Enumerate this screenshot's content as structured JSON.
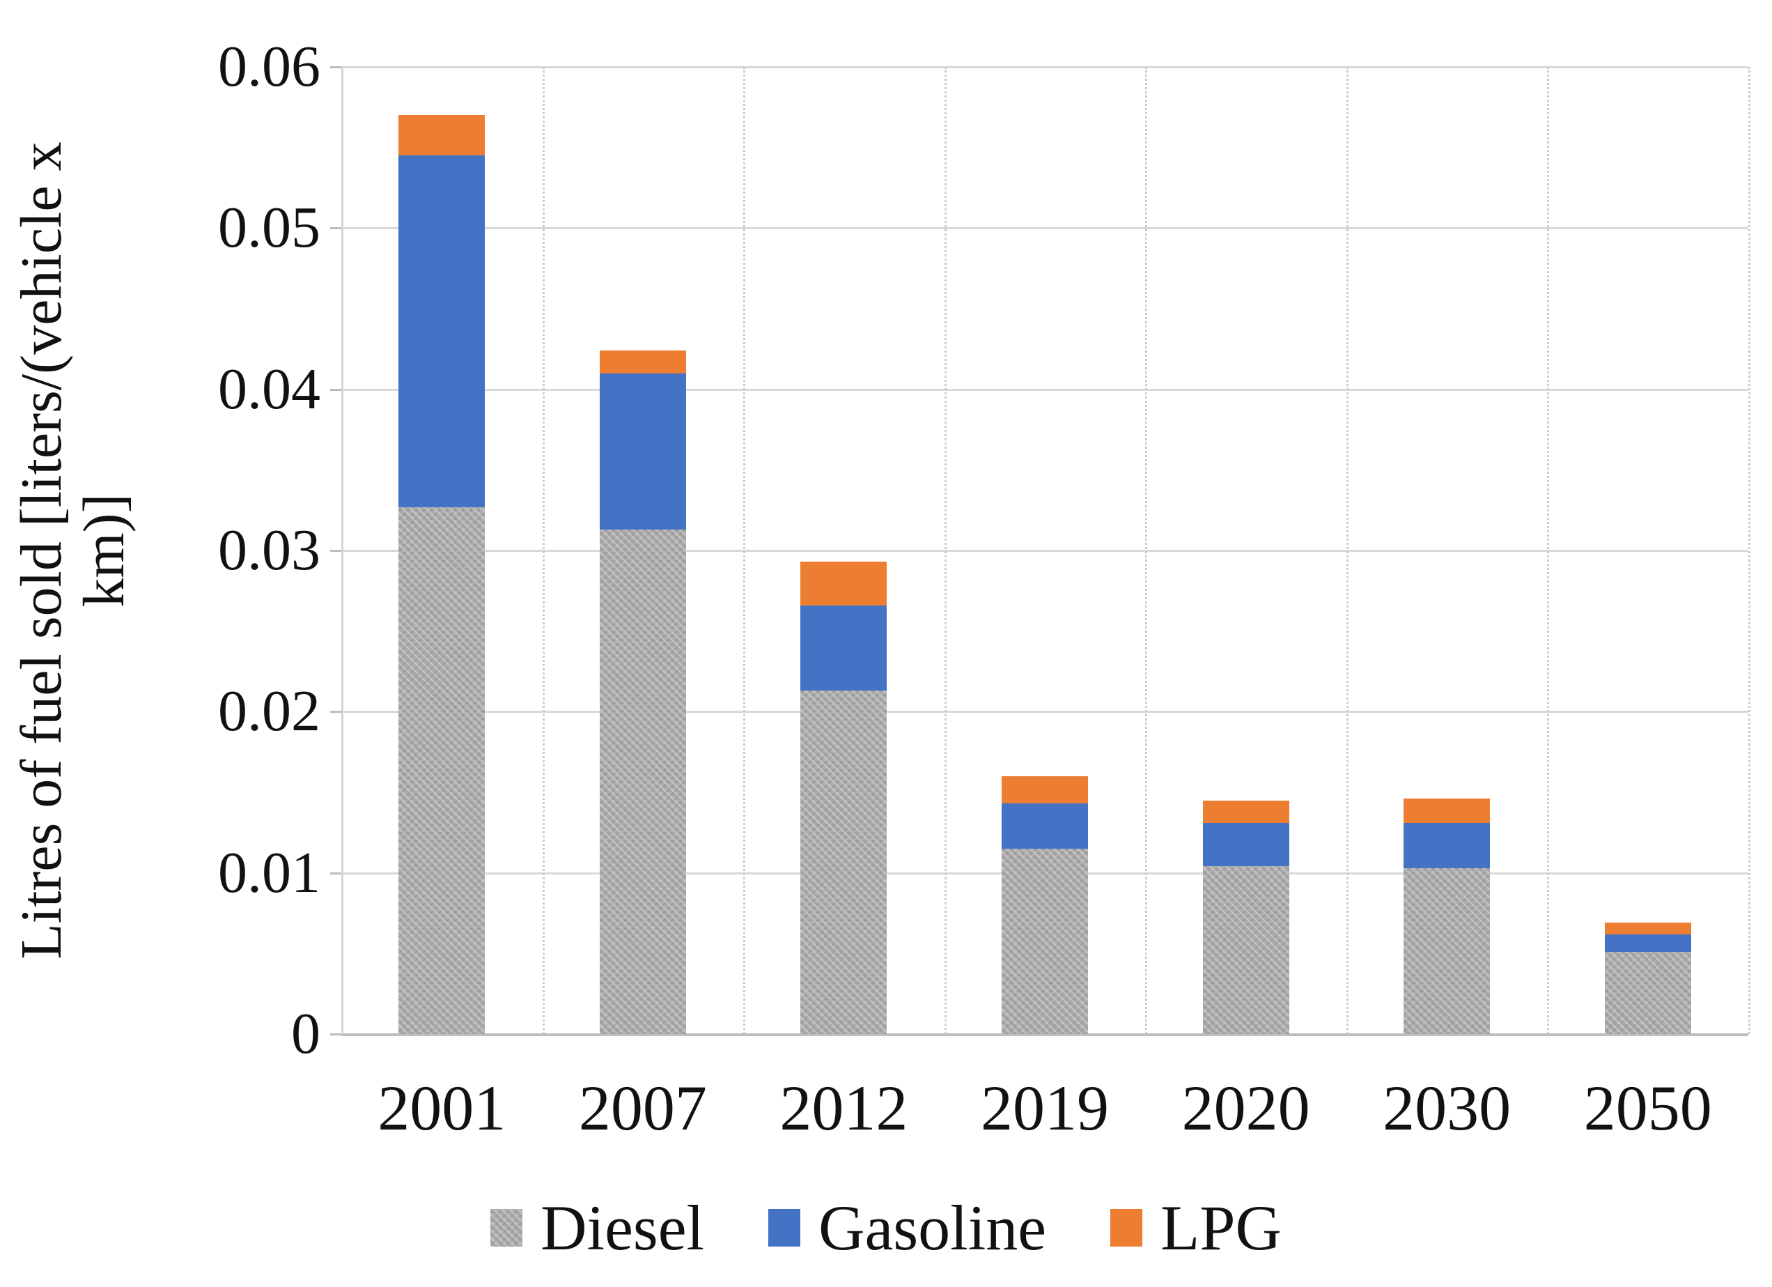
{
  "chart_data": {
    "type": "bar",
    "stacked": true,
    "title": "",
    "xlabel": "",
    "ylabel": "Litres of fuel sold [liters/(vehicle x km)]",
    "ylabel_lines": [
      "Litres of fuel sold [liters/(vehicle x",
      "km)]"
    ],
    "categories": [
      "2001",
      "2007",
      "2012",
      "2019",
      "2020",
      "2030",
      "2050"
    ],
    "series": [
      {
        "name": "Diesel",
        "color": "#a6a6a6",
        "pattern": "weave",
        "values": [
          0.0327,
          0.0313,
          0.0213,
          0.0115,
          0.0104,
          0.0103,
          0.0051
        ]
      },
      {
        "name": "Gasoline",
        "color": "#4472c4",
        "pattern": "solid",
        "values": [
          0.0218,
          0.0097,
          0.0053,
          0.0028,
          0.0027,
          0.0028,
          0.0011
        ]
      },
      {
        "name": "LPG",
        "color": "#ed7d31",
        "pattern": "solid",
        "values": [
          0.0025,
          0.0014,
          0.0027,
          0.0017,
          0.0014,
          0.0015,
          0.0007
        ]
      }
    ],
    "stack_totals": [
      0.057,
      0.0424,
      0.0293,
      0.016,
      0.0145,
      0.0146,
      0.0069
    ],
    "ylim": [
      0,
      0.06
    ],
    "yticks": [
      0,
      0.01,
      0.02,
      0.03,
      0.04,
      0.05,
      0.06
    ],
    "ytick_labels": [
      "0",
      "0.01",
      "0.02",
      "0.03",
      "0.04",
      "0.05",
      "0.06"
    ],
    "grid": true,
    "gridline_color": "#d9d9d9",
    "legend_position": "bottom",
    "legend_labels": [
      "Diesel",
      "Gasoline",
      "LPG"
    ]
  }
}
